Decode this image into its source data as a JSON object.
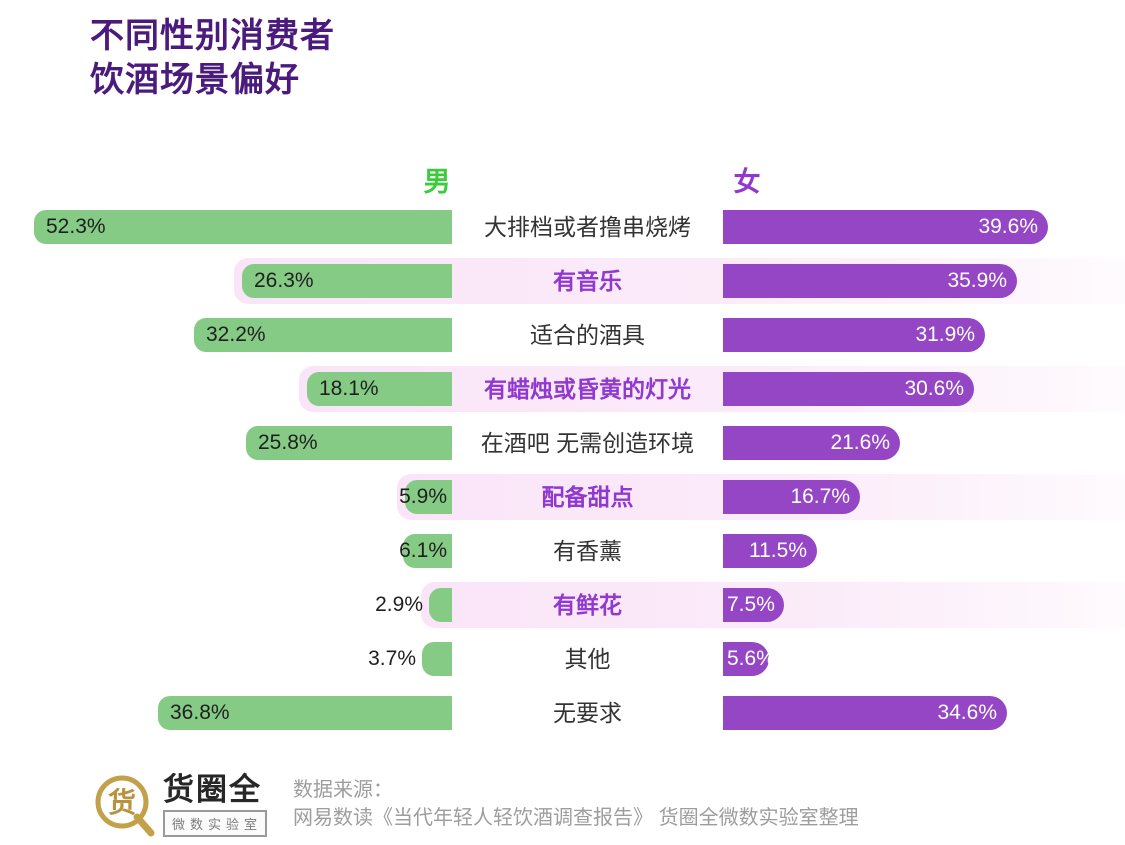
{
  "title": {
    "line1": "不同性别消费者",
    "line2": "饮酒场景偏好"
  },
  "legend": {
    "male": "男",
    "female": "女"
  },
  "colors": {
    "title": "#4a1b7d",
    "male_bar": "#85cb85",
    "male_legend": "#3dcb3d",
    "female_bar": "#9546c4",
    "female_accent": "#9139cf",
    "band_pink": "#fae5f8",
    "plain_label": "#333333",
    "value_dark": "#1f1f1f",
    "value_light": "#ffffff",
    "source_gray": "#9d9d9d",
    "logo_gold": "#c3a04a"
  },
  "chart_data": {
    "type": "bar",
    "orientation": "diverging-horizontal",
    "unit": "%",
    "title": "不同性别消费者饮酒场景偏好",
    "categories": [
      "大排档或者撸串烧烤",
      "有音乐",
      "适合的酒具",
      "有蜡烛或昏黄的灯光",
      "在酒吧 无需创造环境",
      "配备甜点",
      "有香薰",
      "有鲜花",
      "其他",
      "无要求"
    ],
    "series": [
      {
        "name": "男",
        "values": [
          52.3,
          26.3,
          32.2,
          18.1,
          25.8,
          5.9,
          6.1,
          2.9,
          3.7,
          36.8
        ]
      },
      {
        "name": "女",
        "values": [
          39.6,
          35.9,
          31.9,
          30.6,
          21.6,
          16.7,
          11.5,
          7.5,
          5.6,
          34.6
        ]
      }
    ],
    "value_labels": {
      "男": [
        "52.3%",
        "26.3%",
        "32.2%",
        "18.1%",
        "25.8%",
        "5.9%",
        "6.1%",
        "2.9%",
        "3.7%",
        "36.8%"
      ],
      "女": [
        "39.6%",
        "35.9%",
        "31.9%",
        "30.6%",
        "21.6%",
        "16.7%",
        "11.5%",
        "7.5%",
        "5.6%",
        "34.6%"
      ]
    },
    "banded_rows": [
      1,
      3,
      5,
      7
    ],
    "axis_range": [
      0,
      55
    ],
    "grid": false,
    "legend_position": "top"
  },
  "footer": {
    "source_label": "数据来源：",
    "source_text": "网易数读《当代年轻人轻饮酒调查报告》 货圈全微数实验室整理",
    "logo": {
      "icon_char": "货",
      "name": "货圈全",
      "sub": "微数实验室"
    }
  }
}
